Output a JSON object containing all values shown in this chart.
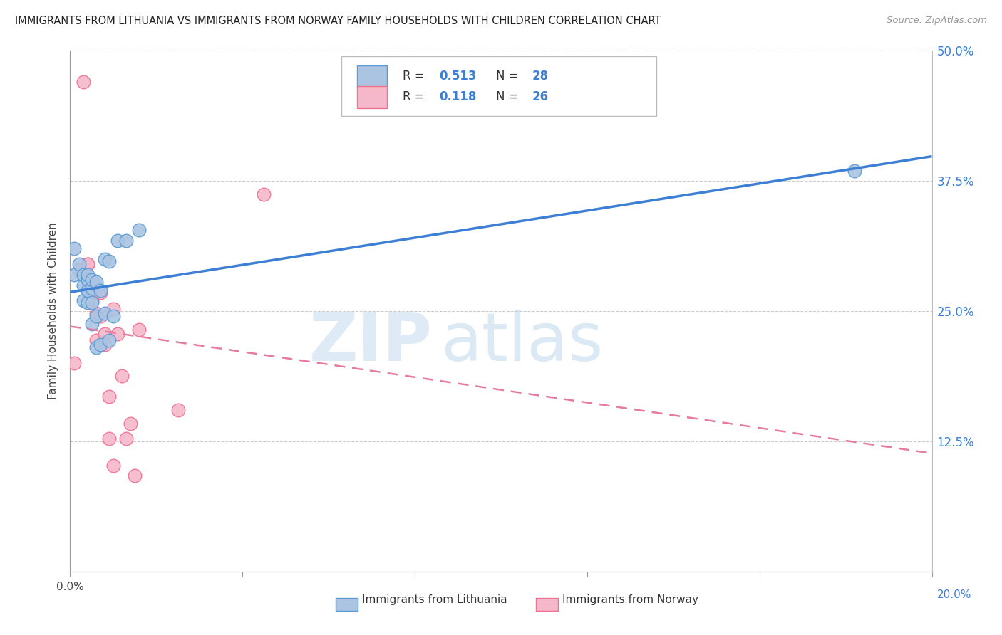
{
  "title": "IMMIGRANTS FROM LITHUANIA VS IMMIGRANTS FROM NORWAY FAMILY HOUSEHOLDS WITH CHILDREN CORRELATION CHART",
  "source": "Source: ZipAtlas.com",
  "ylabel": "Family Households with Children",
  "xlim": [
    0.0,
    0.2
  ],
  "ylim": [
    0.0,
    0.5
  ],
  "yticks": [
    0.0,
    0.125,
    0.25,
    0.375,
    0.5
  ],
  "ytick_labels": [
    "",
    "12.5%",
    "25.0%",
    "37.5%",
    "50.0%"
  ],
  "xticks": [
    0.0,
    0.04,
    0.08,
    0.12,
    0.16,
    0.2
  ],
  "lithuania_color": "#aac4e2",
  "norway_color": "#f5b8cb",
  "lithuania_edge": "#5b9bd5",
  "norway_edge": "#f07090",
  "line_lithuania_color": "#3c7fd4",
  "line_norway_color": "#e87aa0",
  "R_lithuania": 0.513,
  "N_lithuania": 28,
  "R_norway": 0.118,
  "N_norway": 26,
  "watermark_zip": "ZIP",
  "watermark_atlas": "atlas",
  "legend_label_1": "Immigrants from Lithuania",
  "legend_label_2": "Immigrants from Norway",
  "lithuania_x": [
    0.001,
    0.001,
    0.002,
    0.003,
    0.003,
    0.003,
    0.004,
    0.004,
    0.004,
    0.004,
    0.005,
    0.005,
    0.005,
    0.005,
    0.006,
    0.006,
    0.006,
    0.007,
    0.007,
    0.008,
    0.008,
    0.009,
    0.009,
    0.01,
    0.011,
    0.013,
    0.016,
    0.182
  ],
  "lithuania_y": [
    0.285,
    0.31,
    0.295,
    0.26,
    0.275,
    0.285,
    0.258,
    0.27,
    0.28,
    0.285,
    0.238,
    0.258,
    0.272,
    0.28,
    0.215,
    0.245,
    0.278,
    0.218,
    0.27,
    0.248,
    0.3,
    0.222,
    0.298,
    0.245,
    0.318,
    0.318,
    0.328,
    0.385
  ],
  "norway_x": [
    0.001,
    0.002,
    0.003,
    0.004,
    0.004,
    0.005,
    0.005,
    0.005,
    0.006,
    0.006,
    0.007,
    0.007,
    0.008,
    0.008,
    0.009,
    0.009,
    0.01,
    0.01,
    0.011,
    0.012,
    0.013,
    0.014,
    0.015,
    0.016,
    0.025,
    0.045
  ],
  "norway_y": [
    0.2,
    0.29,
    0.47,
    0.295,
    0.295,
    0.268,
    0.26,
    0.278,
    0.248,
    0.222,
    0.245,
    0.268,
    0.228,
    0.218,
    0.168,
    0.128,
    0.102,
    0.252,
    0.228,
    0.188,
    0.128,
    0.142,
    0.092,
    0.232,
    0.155,
    0.362
  ],
  "line_lith_x0": 0.0,
  "line_lith_x1": 0.2,
  "line_norw_x0": 0.0,
  "line_norw_x1": 0.2
}
